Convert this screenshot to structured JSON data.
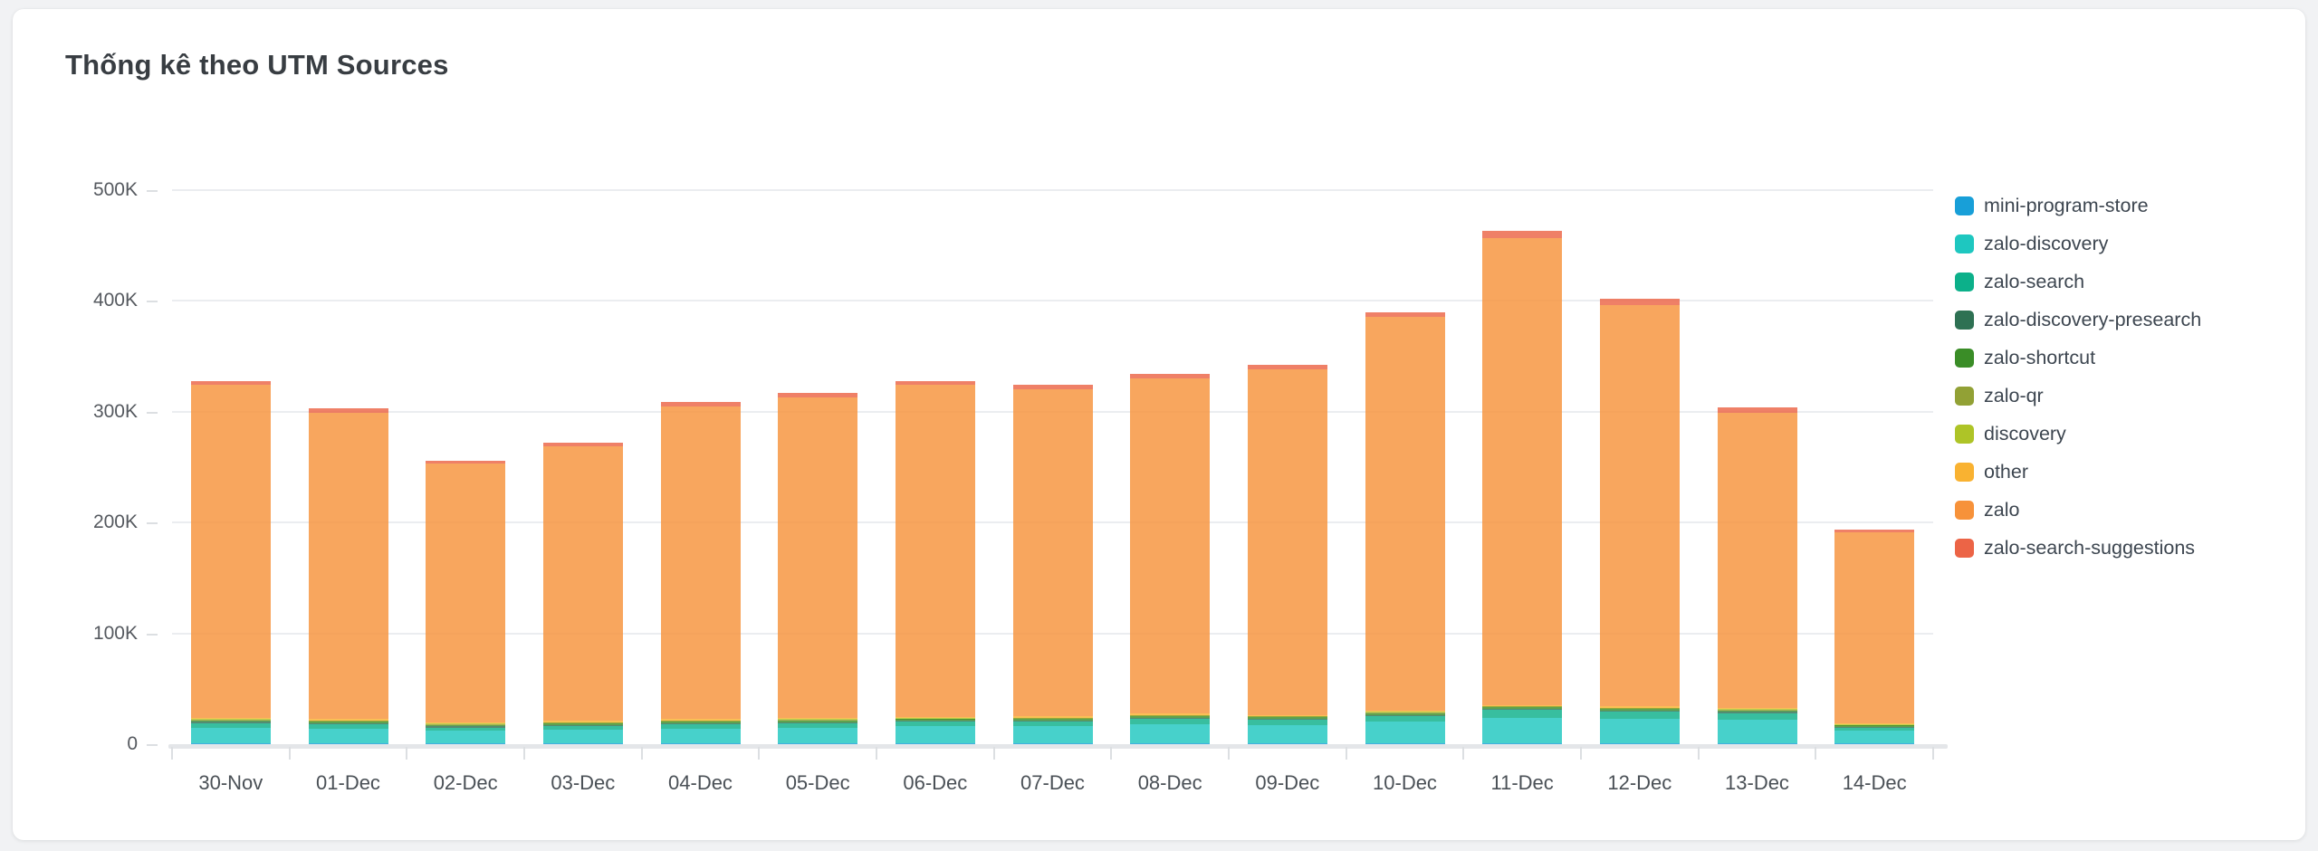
{
  "page": {
    "title": "Thống kê theo UTM Sources"
  },
  "chart_data": {
    "type": "bar",
    "stacked": true,
    "title": "Thống kê theo UTM Sources",
    "xlabel": "",
    "ylabel": "",
    "y_unit": "K (thousands of visits)",
    "ylim": [
      0,
      500
    ],
    "grid": true,
    "legend_position": "right",
    "yticks": [
      {
        "value": 0,
        "label": "0"
      },
      {
        "value": 100,
        "label": "100K"
      },
      {
        "value": 200,
        "label": "200K"
      },
      {
        "value": 300,
        "label": "300K"
      },
      {
        "value": 400,
        "label": "400K"
      },
      {
        "value": 500,
        "label": "500K"
      }
    ],
    "categories": [
      "30-Nov",
      "01-Dec",
      "02-Dec",
      "03-Dec",
      "04-Dec",
      "05-Dec",
      "06-Dec",
      "07-Dec",
      "08-Dec",
      "09-Dec",
      "10-Dec",
      "11-Dec",
      "12-Dec",
      "13-Dec",
      "14-Dec"
    ],
    "series": [
      {
        "name": "mini-program-store",
        "color": "#189fd8",
        "values": [
          1,
          1,
          1,
          1,
          1,
          1,
          1,
          1,
          1,
          1,
          1,
          1,
          1,
          1,
          1
        ]
      },
      {
        "name": "zalo-discovery",
        "color": "#1ec7c0",
        "values": [
          14,
          13,
          11,
          12,
          13,
          14,
          15,
          15,
          17,
          16,
          19,
          23,
          22,
          21,
          11
        ]
      },
      {
        "name": "zalo-search",
        "color": "#0cb08a",
        "values": [
          4,
          4,
          3,
          3.5,
          4,
          4,
          4,
          4.5,
          5,
          5,
          5.5,
          7,
          6.5,
          6,
          2.5
        ]
      },
      {
        "name": "zalo-discovery-presearch",
        "color": "#2e7153",
        "values": [
          1,
          1,
          1,
          1,
          1,
          1,
          1,
          1,
          1,
          1,
          1,
          1,
          1,
          1,
          1
        ]
      },
      {
        "name": "zalo-shortcut",
        "color": "#3a8d27",
        "values": [
          1.5,
          1.5,
          1.5,
          1.5,
          1.5,
          1.5,
          1.5,
          1.5,
          1.5,
          1.5,
          1.5,
          1.5,
          1.5,
          1.5,
          1.5
        ]
      },
      {
        "name": "zalo-qr",
        "color": "#92a135",
        "values": [
          0.5,
          0.5,
          0.5,
          0.5,
          0.5,
          0.5,
          0.5,
          0.5,
          0.5,
          0.5,
          0.5,
          0.5,
          0.5,
          0.5,
          0.5
        ]
      },
      {
        "name": "discovery",
        "color": "#aec427",
        "values": [
          0.5,
          0.5,
          0.5,
          0.5,
          0.5,
          0.5,
          0.5,
          0.5,
          0.5,
          0.5,
          0.5,
          0.5,
          0.5,
          0.5,
          0.5
        ]
      },
      {
        "name": "other",
        "color": "#f9b231",
        "values": [
          1,
          1,
          1,
          1,
          1,
          1,
          1,
          1,
          1,
          1,
          1,
          1,
          1,
          1,
          1
        ]
      },
      {
        "name": "zalo",
        "color": "#f7923a",
        "values": [
          300.5,
          276.5,
          233.5,
          248,
          282.5,
          289.5,
          299.5,
          295,
          302.5,
          311.5,
          356,
          421.5,
          362,
          266.5,
          172
        ]
      },
      {
        "name": "zalo-search-suggestions",
        "color": "#ec6446",
        "values": [
          4,
          4,
          3,
          3,
          4,
          4,
          4,
          4,
          4,
          4,
          4,
          6,
          6,
          5,
          3
        ]
      }
    ],
    "totals": [
      328,
      303,
      256,
      272,
      309,
      317,
      328,
      324,
      334,
      342,
      390,
      463,
      402,
      304,
      194
    ]
  }
}
